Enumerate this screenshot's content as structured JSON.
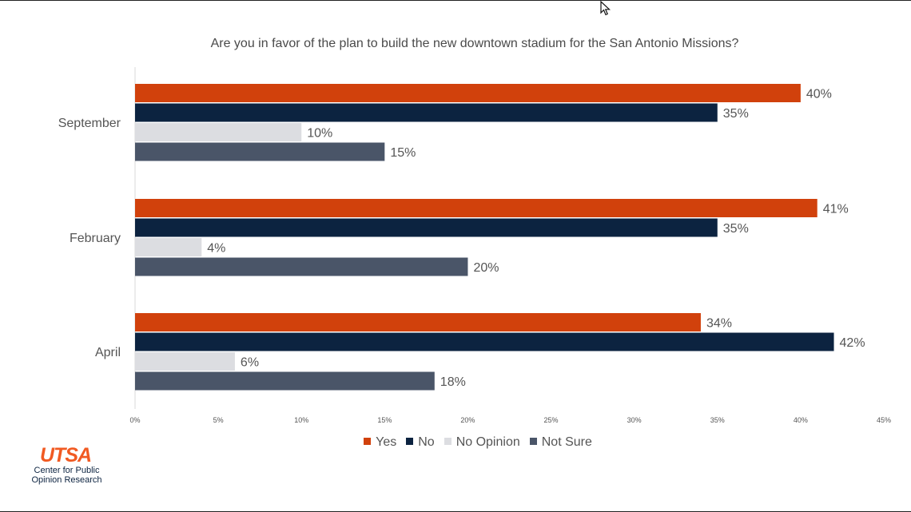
{
  "chart_data": {
    "type": "bar",
    "orientation": "horizontal",
    "title": "Are you in favor of the plan to build the new downtown stadium for the San Antonio Missions?",
    "categories": [
      "September",
      "February",
      "April"
    ],
    "series": [
      {
        "name": "Yes",
        "color": "#d1410c",
        "values": [
          40,
          41,
          34
        ]
      },
      {
        "name": "No",
        "color": "#0c2340",
        "values": [
          35,
          35,
          42
        ]
      },
      {
        "name": "No Opinion",
        "color": "#dcdde1",
        "values": [
          10,
          4,
          6
        ]
      },
      {
        "name": "Not Sure",
        "color": "#4a5568",
        "values": [
          15,
          20,
          18
        ]
      }
    ],
    "data_labels": [
      [
        "40%",
        "35%",
        "10%",
        "15%"
      ],
      [
        "41%",
        "35%",
        "4%",
        "20%"
      ],
      [
        "34%",
        "42%",
        "6%",
        "18%"
      ]
    ],
    "xlim": [
      0,
      45
    ],
    "xticks": [
      0,
      5,
      10,
      15,
      20,
      25,
      30,
      35,
      40,
      45
    ],
    "xtick_labels": [
      "0%",
      "5%",
      "10%",
      "15%",
      "20%",
      "25%",
      "30%",
      "35%",
      "40%",
      "45%"
    ],
    "legend_position": "bottom",
    "grid": false
  },
  "logo": {
    "mark": "UTSA",
    "subtitle_line1": "Center for Public",
    "subtitle_line2": "Opinion Research"
  }
}
